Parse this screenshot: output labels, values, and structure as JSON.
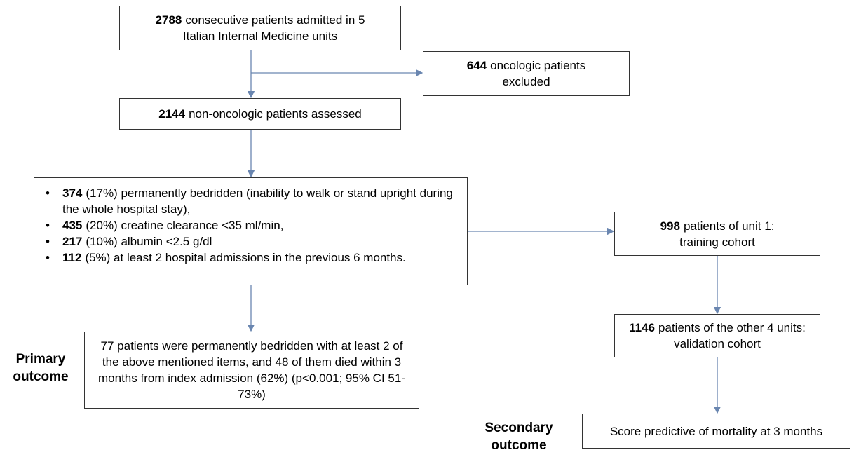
{
  "nodes": [
    {
      "bold": "2788",
      "text": "consecutive patients admitted in 5 Italian Internal Medicine units"
    },
    {
      "bold": "644",
      "text": "oncologic patients excluded"
    },
    {
      "bold": "2144",
      "text": "non-oncologic patients  assessed"
    },
    {
      "items": [
        {
          "bold": "374",
          "text": "(17%) permanently bedridden (inability to walk or stand upright during the whole hospital stay),"
        },
        {
          "bold": "435",
          "text": "(20%) creatine clearance <35 ml/min,"
        },
        {
          "bold": "217",
          "text": "(10%) albumin <2.5 g/dl"
        },
        {
          "bold": "112",
          "text": "(5%) at least 2 hospital admissions in the previous  6 months."
        }
      ]
    },
    {
      "text": "77 patients were permanently bedridden with at least 2 of the above mentioned items, and 48 of them died within 3 months from index admission (62%) (p<0.001; 95% CI 51-73%)"
    },
    {
      "bold": "998",
      "text": "patients of unit 1: training cohort"
    },
    {
      "bold": "1146",
      "text": "patients of the other 4 units: validation cohort"
    },
    {
      "text": "Score predictive of mortality at 3 months"
    }
  ],
  "labels": [
    "Primary outcome",
    "Secondary outcome"
  ]
}
